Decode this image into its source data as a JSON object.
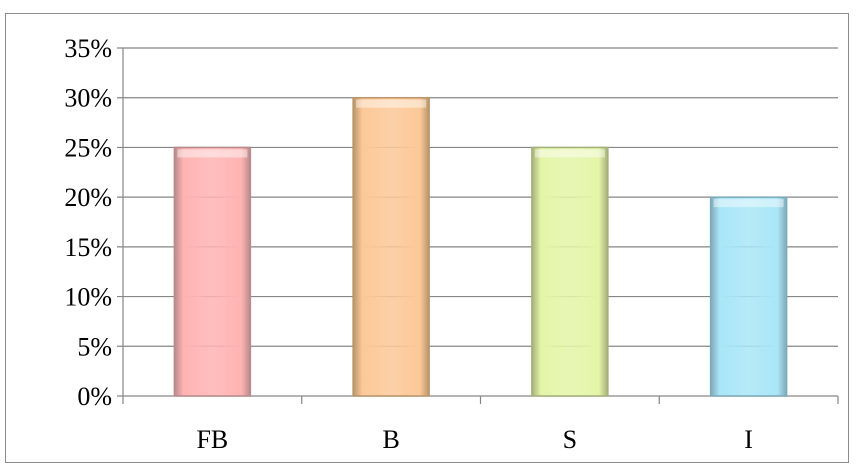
{
  "chart_data": {
    "type": "bar",
    "categories": [
      "FB",
      "B",
      "S",
      "I"
    ],
    "values": [
      25,
      30,
      25,
      20
    ],
    "y_unit": "%",
    "ylim": [
      0,
      35
    ],
    "y_ticks": [
      0,
      5,
      10,
      15,
      20,
      25,
      30,
      35
    ],
    "y_tick_labels": [
      "0%",
      "5%",
      "10%",
      "15%",
      "20%",
      "25%",
      "30%",
      "35%"
    ],
    "grid": true,
    "legend": "none",
    "title": "",
    "xlabel": "",
    "ylabel": "",
    "bar_colors": [
      "#ffb3b3",
      "#fcc898",
      "#e4f5a8",
      "#a9e6f7"
    ],
    "bar_border_colors": [
      "#b88a8a",
      "#b8956a",
      "#a4b07a",
      "#7fa9b8"
    ]
  }
}
